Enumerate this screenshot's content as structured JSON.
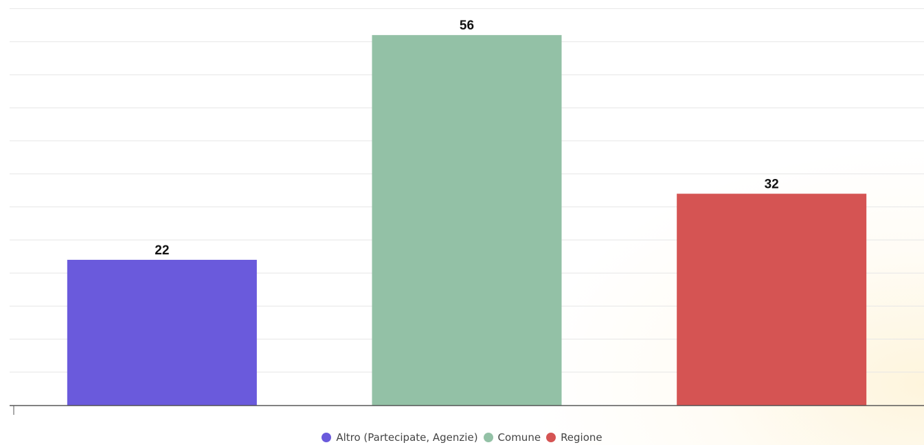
{
  "chart_data": {
    "type": "bar",
    "categories": [
      "Altro (Partecipate, Agenzie)",
      "Comune",
      "Regione"
    ],
    "values": [
      22,
      56,
      32
    ],
    "colors": [
      "#6a5adc",
      "#93c1a6",
      "#d55453"
    ],
    "ylim": [
      0,
      60
    ],
    "grid": true,
    "legend_position": "bottom",
    "data_labels": [
      "22",
      "56",
      "32"
    ]
  }
}
